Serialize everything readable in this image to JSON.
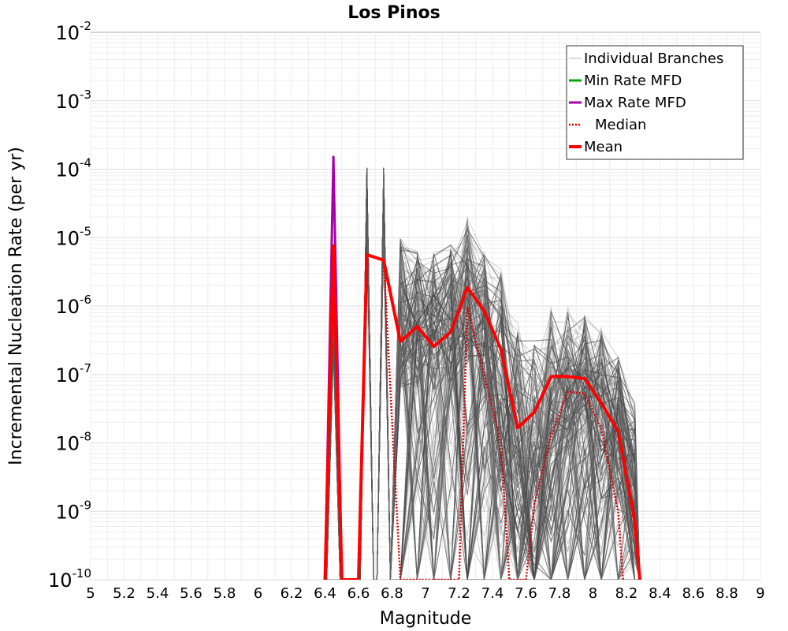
{
  "chart_data": {
    "type": "line",
    "title": "Los Pinos",
    "xlabel": "Magnitude",
    "ylabel": "Incremental Nucleation Rate (per yr)",
    "xlim": [
      5,
      9
    ],
    "ylim_log10": [
      -10,
      -2
    ],
    "y_scale": "log",
    "grid": true,
    "x_ticks": [
      "5",
      "5.2",
      "5.4",
      "5.6",
      "5.8",
      "6",
      "6.2",
      "6.4",
      "6.6",
      "6.8",
      "7",
      "7.2",
      "7.4",
      "7.6",
      "7.8",
      "8",
      "8.2",
      "8.4",
      "8.6",
      "8.8",
      "9"
    ],
    "y_ticks": [
      {
        "base": "10",
        "exp": "-2",
        "log": -2
      },
      {
        "base": "10",
        "exp": "-3",
        "log": -3
      },
      {
        "base": "10",
        "exp": "-4",
        "log": -4
      },
      {
        "base": "10",
        "exp": "-5",
        "log": -5
      },
      {
        "base": "10",
        "exp": "-6",
        "log": -6
      },
      {
        "base": "10",
        "exp": "-7",
        "log": -7
      },
      {
        "base": "10",
        "exp": "-8",
        "log": -8
      },
      {
        "base": "10",
        "exp": "-9",
        "log": -9
      },
      {
        "base": "10",
        "exp": "-10",
        "log": -10
      }
    ],
    "legend_position": "top-right",
    "legend": [
      {
        "label": "Individual Branches",
        "color": "#bbbbbb",
        "style": "thin"
      },
      {
        "label": "Min Rate MFD",
        "color": "#00aa00",
        "style": "solid"
      },
      {
        "label": "Max Rate MFD",
        "color": "#aa00aa",
        "style": "solid"
      },
      {
        "label": "Median",
        "color": "#dd0000",
        "style": "dotted"
      },
      {
        "label": "Mean",
        "color": "#ff0000",
        "style": "thick"
      }
    ],
    "series": [
      {
        "name": "Mean",
        "color": "#ff0000",
        "x": [
          6.4,
          6.45,
          6.5,
          6.6,
          6.65,
          6.75,
          6.85,
          6.95,
          7.05,
          7.15,
          7.25,
          7.35,
          7.45,
          7.55,
          7.65,
          7.75,
          7.85,
          7.95,
          8.05,
          8.15,
          8.25,
          8.28
        ],
        "log10_y": [
          -10,
          -5.12,
          -10,
          -10,
          -5.25,
          -5.33,
          -6.52,
          -6.3,
          -6.59,
          -6.38,
          -5.73,
          -6.07,
          -6.63,
          -7.78,
          -7.55,
          -7.03,
          -7.03,
          -7.06,
          -7.42,
          -7.83,
          -9.15,
          -10
        ]
      },
      {
        "name": "Median",
        "color": "#dd0000",
        "x": [
          6.4,
          6.45,
          6.5,
          6.6,
          6.65,
          6.75,
          6.85,
          7.2,
          7.25,
          7.35,
          7.45,
          7.5,
          7.6,
          7.65,
          7.75,
          7.85,
          7.95,
          8.05,
          8.15,
          8.18
        ],
        "log10_y": [
          -10,
          -5.12,
          -10,
          -10,
          -5.25,
          -5.33,
          -10,
          -10,
          -6.02,
          -7.0,
          -8.0,
          -10,
          -10,
          -8.9,
          -7.9,
          -7.25,
          -7.28,
          -7.8,
          -9.0,
          -10
        ]
      },
      {
        "name": "Max Rate MFD",
        "color": "#aa00aa",
        "x": [
          6.4,
          6.45,
          6.5
        ],
        "log10_y": [
          -10,
          -3.82,
          -10
        ]
      }
    ],
    "branch_envelope": {
      "color": "#555555",
      "bins": [
        6.45,
        6.65,
        6.75,
        6.85,
        6.95,
        7.05,
        7.15,
        7.25,
        7.35,
        7.45,
        7.55,
        7.65,
        7.75,
        7.85,
        7.95,
        8.05,
        8.15,
        8.25
      ],
      "log10_max": [
        -5.5,
        -3.98,
        -3.98,
        -5.0,
        -5.1,
        -5.1,
        -5.1,
        -4.7,
        -5.2,
        -5.5,
        -6.3,
        -6.5,
        -6.0,
        -6.0,
        -6.1,
        -6.3,
        -6.7,
        -7.6
      ]
    }
  }
}
